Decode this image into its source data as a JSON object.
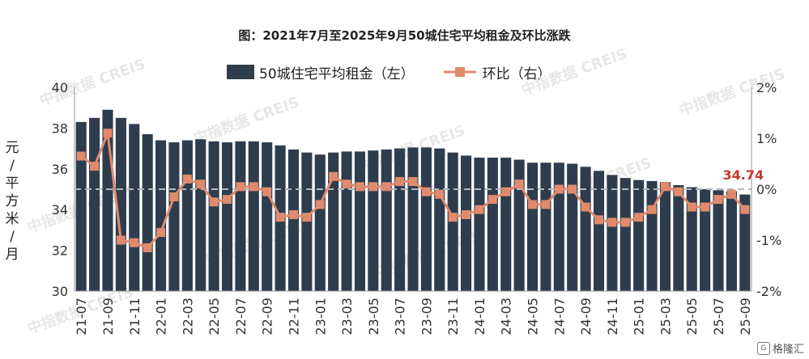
{
  "title": "图：2021年7月至2025年9月50城住宅平均租金及环比涨跌",
  "watermark": "中指数据 CREIS",
  "brand": "格隆汇",
  "brand_icon": "brand-logo-icon",
  "colors": {
    "bar": "#2E3D4D",
    "line": "#E08B6D",
    "zero_line": "#AEB8C2",
    "annotation": "#C0392B"
  },
  "chart_data": {
    "type": "bar",
    "title": "图：2021年7月至2025年9月50城住宅平均租金及环比涨跌",
    "ylabel": "元/平方米/月",
    "ylim": [
      30,
      40
    ],
    "y2lim": [
      -2,
      2
    ],
    "yticks": [
      "30",
      "32",
      "34",
      "36",
      "38",
      "40"
    ],
    "y2ticks": [
      "-2%",
      "-1%",
      "0%",
      "1%",
      "2%"
    ],
    "grid": false,
    "legend_position": "top",
    "annotation": "34.74",
    "categories": [
      "21-07",
      "21-08",
      "21-09",
      "21-10",
      "21-11",
      "21-12",
      "22-01",
      "22-02",
      "22-03",
      "22-04",
      "22-05",
      "22-06",
      "22-07",
      "22-08",
      "22-09",
      "22-10",
      "22-11",
      "22-12",
      "23-01",
      "23-02",
      "23-03",
      "23-04",
      "23-05",
      "23-06",
      "23-07",
      "23-08",
      "23-09",
      "23-10",
      "23-11",
      "23-12",
      "24-01",
      "24-02",
      "24-03",
      "24-04",
      "24-05",
      "24-06",
      "24-07",
      "24-08",
      "24-09",
      "24-10",
      "24-11",
      "24-12",
      "25-01",
      "25-02",
      "25-03",
      "25-04",
      "25-05",
      "25-06",
      "25-07",
      "25-08",
      "25-09"
    ],
    "x_tick_labels": [
      "21-07",
      "21-09",
      "21-11",
      "22-01",
      "22-03",
      "22-05",
      "22-07",
      "22-09",
      "22-11",
      "23-01",
      "23-03",
      "23-05",
      "23-07",
      "23-09",
      "23-11",
      "24-01",
      "24-03",
      "24-05",
      "24-07",
      "24-09",
      "24-11",
      "25-01",
      "25-03",
      "25-05",
      "25-07",
      "25-09"
    ],
    "series": [
      {
        "name": "50城住宅平均租金（左）",
        "type": "bar",
        "axis": "left",
        "values": [
          38.3,
          38.5,
          38.9,
          38.5,
          38.2,
          37.7,
          37.4,
          37.3,
          37.4,
          37.45,
          37.35,
          37.3,
          37.35,
          37.35,
          37.3,
          37.15,
          36.95,
          36.8,
          36.7,
          36.8,
          36.85,
          36.85,
          36.9,
          36.95,
          37.0,
          37.05,
          37.05,
          37.0,
          36.8,
          36.65,
          36.55,
          36.55,
          36.55,
          36.45,
          36.3,
          36.3,
          36.3,
          36.25,
          36.1,
          35.9,
          35.7,
          35.55,
          35.45,
          35.4,
          35.35,
          35.2,
          35.1,
          35.0,
          34.95,
          34.9,
          34.74
        ]
      },
      {
        "name": "环比（右）",
        "type": "line",
        "axis": "right",
        "values": [
          0.65,
          0.45,
          1.1,
          -1.0,
          -1.05,
          -1.15,
          -0.85,
          -0.15,
          0.2,
          0.1,
          -0.25,
          -0.2,
          0.05,
          0.05,
          -0.05,
          -0.55,
          -0.5,
          -0.55,
          -0.3,
          0.25,
          0.1,
          0.05,
          0.05,
          0.05,
          0.15,
          0.15,
          -0.05,
          -0.1,
          -0.55,
          -0.5,
          -0.4,
          -0.2,
          -0.05,
          0.1,
          -0.3,
          -0.3,
          0.0,
          0.0,
          -0.35,
          -0.6,
          -0.65,
          -0.65,
          -0.55,
          -0.4,
          0.05,
          -0.05,
          -0.35,
          -0.35,
          -0.2,
          -0.1,
          -0.4
        ]
      }
    ]
  }
}
